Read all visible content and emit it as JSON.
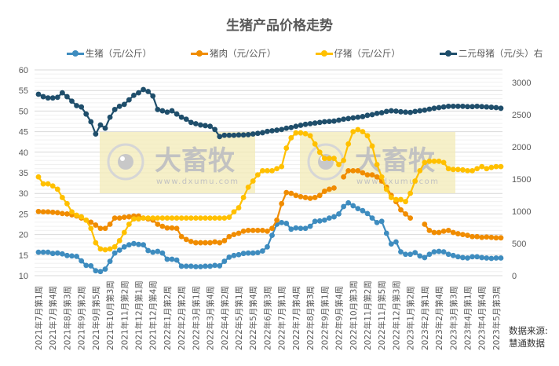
{
  "chart_data": {
    "type": "line",
    "title": "生猪产品价格走势",
    "xlabel": "",
    "ylabel": "",
    "ylim_left": [
      10,
      60
    ],
    "ylim_right": [
      0,
      3000
    ],
    "y_ticks_left": [
      10,
      15,
      20,
      25,
      30,
      35,
      40,
      45,
      50,
      55,
      60
    ],
    "y_ticks_right": [
      0,
      500,
      1000,
      1500,
      2000,
      2500,
      3000
    ],
    "grid": true,
    "legend_position": "top",
    "x_tick_labels": [
      "2021年7月第1周",
      "2021年7月第4周",
      "2021年8月第3周",
      "2021年9月第2周",
      "2021年9月第5周",
      "2021年10月第3周",
      "2021年11月第2周",
      "2021年12月第1周",
      "2021年12月第4周",
      "2022年1月第2周",
      "2022年2月第2周",
      "2022年3月第1周",
      "2022年3月第4周",
      "2022年4月第2周",
      "2022年5月第1周",
      "2022年5月第4周",
      "2022年6月第3周",
      "2022年7月第1周",
      "2022年7月第4周",
      "2022年8月第3周",
      "2022年9月第1周",
      "2022年9月第4周",
      "2022年10月第3周",
      "2022年11月第2周",
      "2022年11月第5周",
      "2022年12月第3周",
      "2023年1月第2周",
      "2023年2月第1周",
      "2023年2月第4周",
      "2023年3月第3周",
      "2023年4月第1周",
      "2023年4月第4周",
      "2023年5月第3周"
    ],
    "x_tick_every": 3,
    "n_points": 98,
    "series": [
      {
        "name": "生猪（元/公斤）",
        "axis": "left",
        "color": "#3E8CBF",
        "values": [
          15.7,
          15.7,
          15.7,
          15.4,
          15.5,
          15.3,
          14.9,
          14.8,
          14.7,
          13.6,
          12.5,
          12.4,
          11.2,
          11.0,
          11.6,
          13.5,
          15.5,
          16.2,
          17.0,
          17.5,
          17.8,
          17.6,
          17.5,
          16.1,
          15.7,
          15.9,
          15.5,
          14.0,
          14.0,
          13.8,
          12.3,
          12.3,
          12.3,
          12.2,
          12.2,
          12.3,
          12.3,
          12.5,
          12.4,
          13.5,
          14.5,
          14.9,
          15.1,
          15.4,
          15.5,
          15.5,
          15.6,
          16.0,
          17.0,
          19.8,
          22.5,
          22.9,
          22.7,
          21.3,
          21.6,
          21.5,
          21.5,
          22.0,
          23.2,
          23.3,
          23.5,
          24.0,
          24.3,
          25.0,
          26.8,
          27.7,
          27.0,
          26.3,
          25.8,
          25.1,
          24.0,
          22.9,
          23.2,
          20.3,
          17.7,
          18.2,
          15.8,
          15.2,
          15.2,
          15.6,
          14.8,
          14.4,
          15.2,
          15.8,
          15.9,
          15.8,
          15.2,
          14.9,
          14.6,
          14.4,
          14.3,
          14.6,
          14.6,
          14.4,
          14.3,
          14.2,
          14.3,
          14.3
        ]
      },
      {
        "name": "猪肉（元/公斤）",
        "axis": "left",
        "color": "#F08C00",
        "values": [
          25.6,
          25.5,
          25.5,
          25.4,
          25.3,
          25.1,
          25.0,
          24.8,
          24.5,
          24.0,
          23.5,
          23.0,
          22.3,
          21.5,
          21.5,
          22.5,
          24.0,
          24.0,
          24.2,
          24.3,
          24.5,
          24.5,
          24.0,
          23.8,
          23.5,
          22.5,
          22.0,
          21.6,
          21.6,
          21.5,
          19.5,
          18.8,
          18.3,
          18.0,
          18.0,
          18.0,
          18.0,
          18.2,
          18.0,
          18.5,
          19.5,
          20.0,
          20.3,
          20.8,
          21.0,
          21.0,
          21.0,
          21.0,
          20.8,
          21.5,
          23.5,
          27.5,
          30.2,
          30.0,
          29.5,
          29.2,
          29.0,
          28.8,
          29.0,
          29.5,
          30.5,
          31.0,
          31.3,
          null,
          34.0,
          35.5,
          35.5,
          35.5,
          35.0,
          34.5,
          34.5,
          34.0,
          33.0,
          31.5,
          29.5,
          28.0,
          26.0,
          25.0,
          24.0,
          null,
          null,
          22.5,
          21.0,
          20.5,
          20.5,
          20.8,
          21.0,
          20.5,
          20.2,
          20.0,
          19.8,
          19.5,
          19.5,
          19.3,
          19.4,
          19.3,
          19.2,
          19.2
        ]
      },
      {
        "name": "仔猪（元/公斤）",
        "axis": "left",
        "color": "#FFC000",
        "values": [
          34.0,
          32.3,
          32.3,
          31.8,
          31.0,
          29.0,
          27.5,
          25.5,
          24.7,
          24.3,
          23.5,
          21.5,
          18.0,
          16.5,
          16.3,
          16.5,
          17.0,
          18.5,
          20.5,
          22.5,
          23.8,
          23.8,
          24.0,
          24.0,
          24.0,
          24.0,
          24.0,
          24.0,
          24.0,
          24.0,
          24.0,
          24.0,
          24.0,
          24.0,
          24.0,
          24.0,
          24.0,
          24.0,
          24.0,
          24.0,
          24.2,
          25.5,
          26.5,
          29.0,
          31.5,
          33.0,
          34.5,
          35.5,
          35.5,
          35.5,
          36.0,
          36.5,
          41.0,
          43.5,
          44.7,
          44.7,
          44.5,
          44.0,
          42.0,
          40.0,
          38.5,
          38.5,
          38.5,
          37.0,
          38.0,
          42.0,
          45.0,
          45.5,
          45.0,
          44.0,
          41.5,
          37.0,
          34.0,
          31.0,
          29.0,
          28.5,
          28.5,
          28.0,
          30.0,
          33.0,
          35.5,
          37.5,
          37.8,
          37.8,
          37.8,
          37.5,
          36.0,
          35.8,
          35.8,
          35.7,
          35.5,
          35.5,
          36.0,
          36.5,
          36.0,
          36.3,
          36.5,
          36.5
        ]
      },
      {
        "name": "二元母猪（元/头）右",
        "axis": "right",
        "color": "#1F4E6B",
        "values": [
          2817,
          2780,
          2760,
          2760,
          2770,
          2840,
          2780,
          2710,
          2640,
          2620,
          2510,
          2390,
          2200,
          2340,
          2290,
          2460,
          2580,
          2630,
          2660,
          2730,
          2800,
          2840,
          2890,
          2860,
          2790,
          2580,
          2560,
          2540,
          2560,
          2510,
          2460,
          2430,
          2380,
          2360,
          2340,
          2330,
          2320,
          2270,
          2160,
          2180,
          2180,
          2180,
          2185,
          2185,
          2190,
          2200,
          2210,
          2220,
          2240,
          2250,
          2260,
          2270,
          2290,
          2300,
          2320,
          2335,
          2350,
          2360,
          2370,
          2380,
          2390,
          2395,
          2400,
          2415,
          2430,
          2440,
          2450,
          2460,
          2470,
          2490,
          2500,
          2520,
          2530,
          2550,
          2560,
          2555,
          2545,
          2540,
          2535,
          2550,
          2560,
          2570,
          2585,
          2600,
          2610,
          2620,
          2630,
          2630,
          2630,
          2630,
          2625,
          2625,
          2630,
          2625,
          2620,
          2615,
          2610,
          2600
        ]
      }
    ]
  },
  "page": {
    "title": "生猪产品价格走势",
    "legend": [
      {
        "label": "生猪（元/公斤）",
        "color": "#3E8CBF"
      },
      {
        "label": "猪肉（元/公斤）",
        "color": "#F08C00"
      },
      {
        "label": "仔猪（元/公斤）",
        "color": "#FFC000"
      },
      {
        "label": "二元母猪（元/头）右",
        "color": "#1F4E6B"
      }
    ],
    "source_line1": "数据来源:",
    "source_line2": "慧通数据",
    "watermark": {
      "brand": "大畜牧",
      "url": "www.dxumu.com"
    }
  }
}
